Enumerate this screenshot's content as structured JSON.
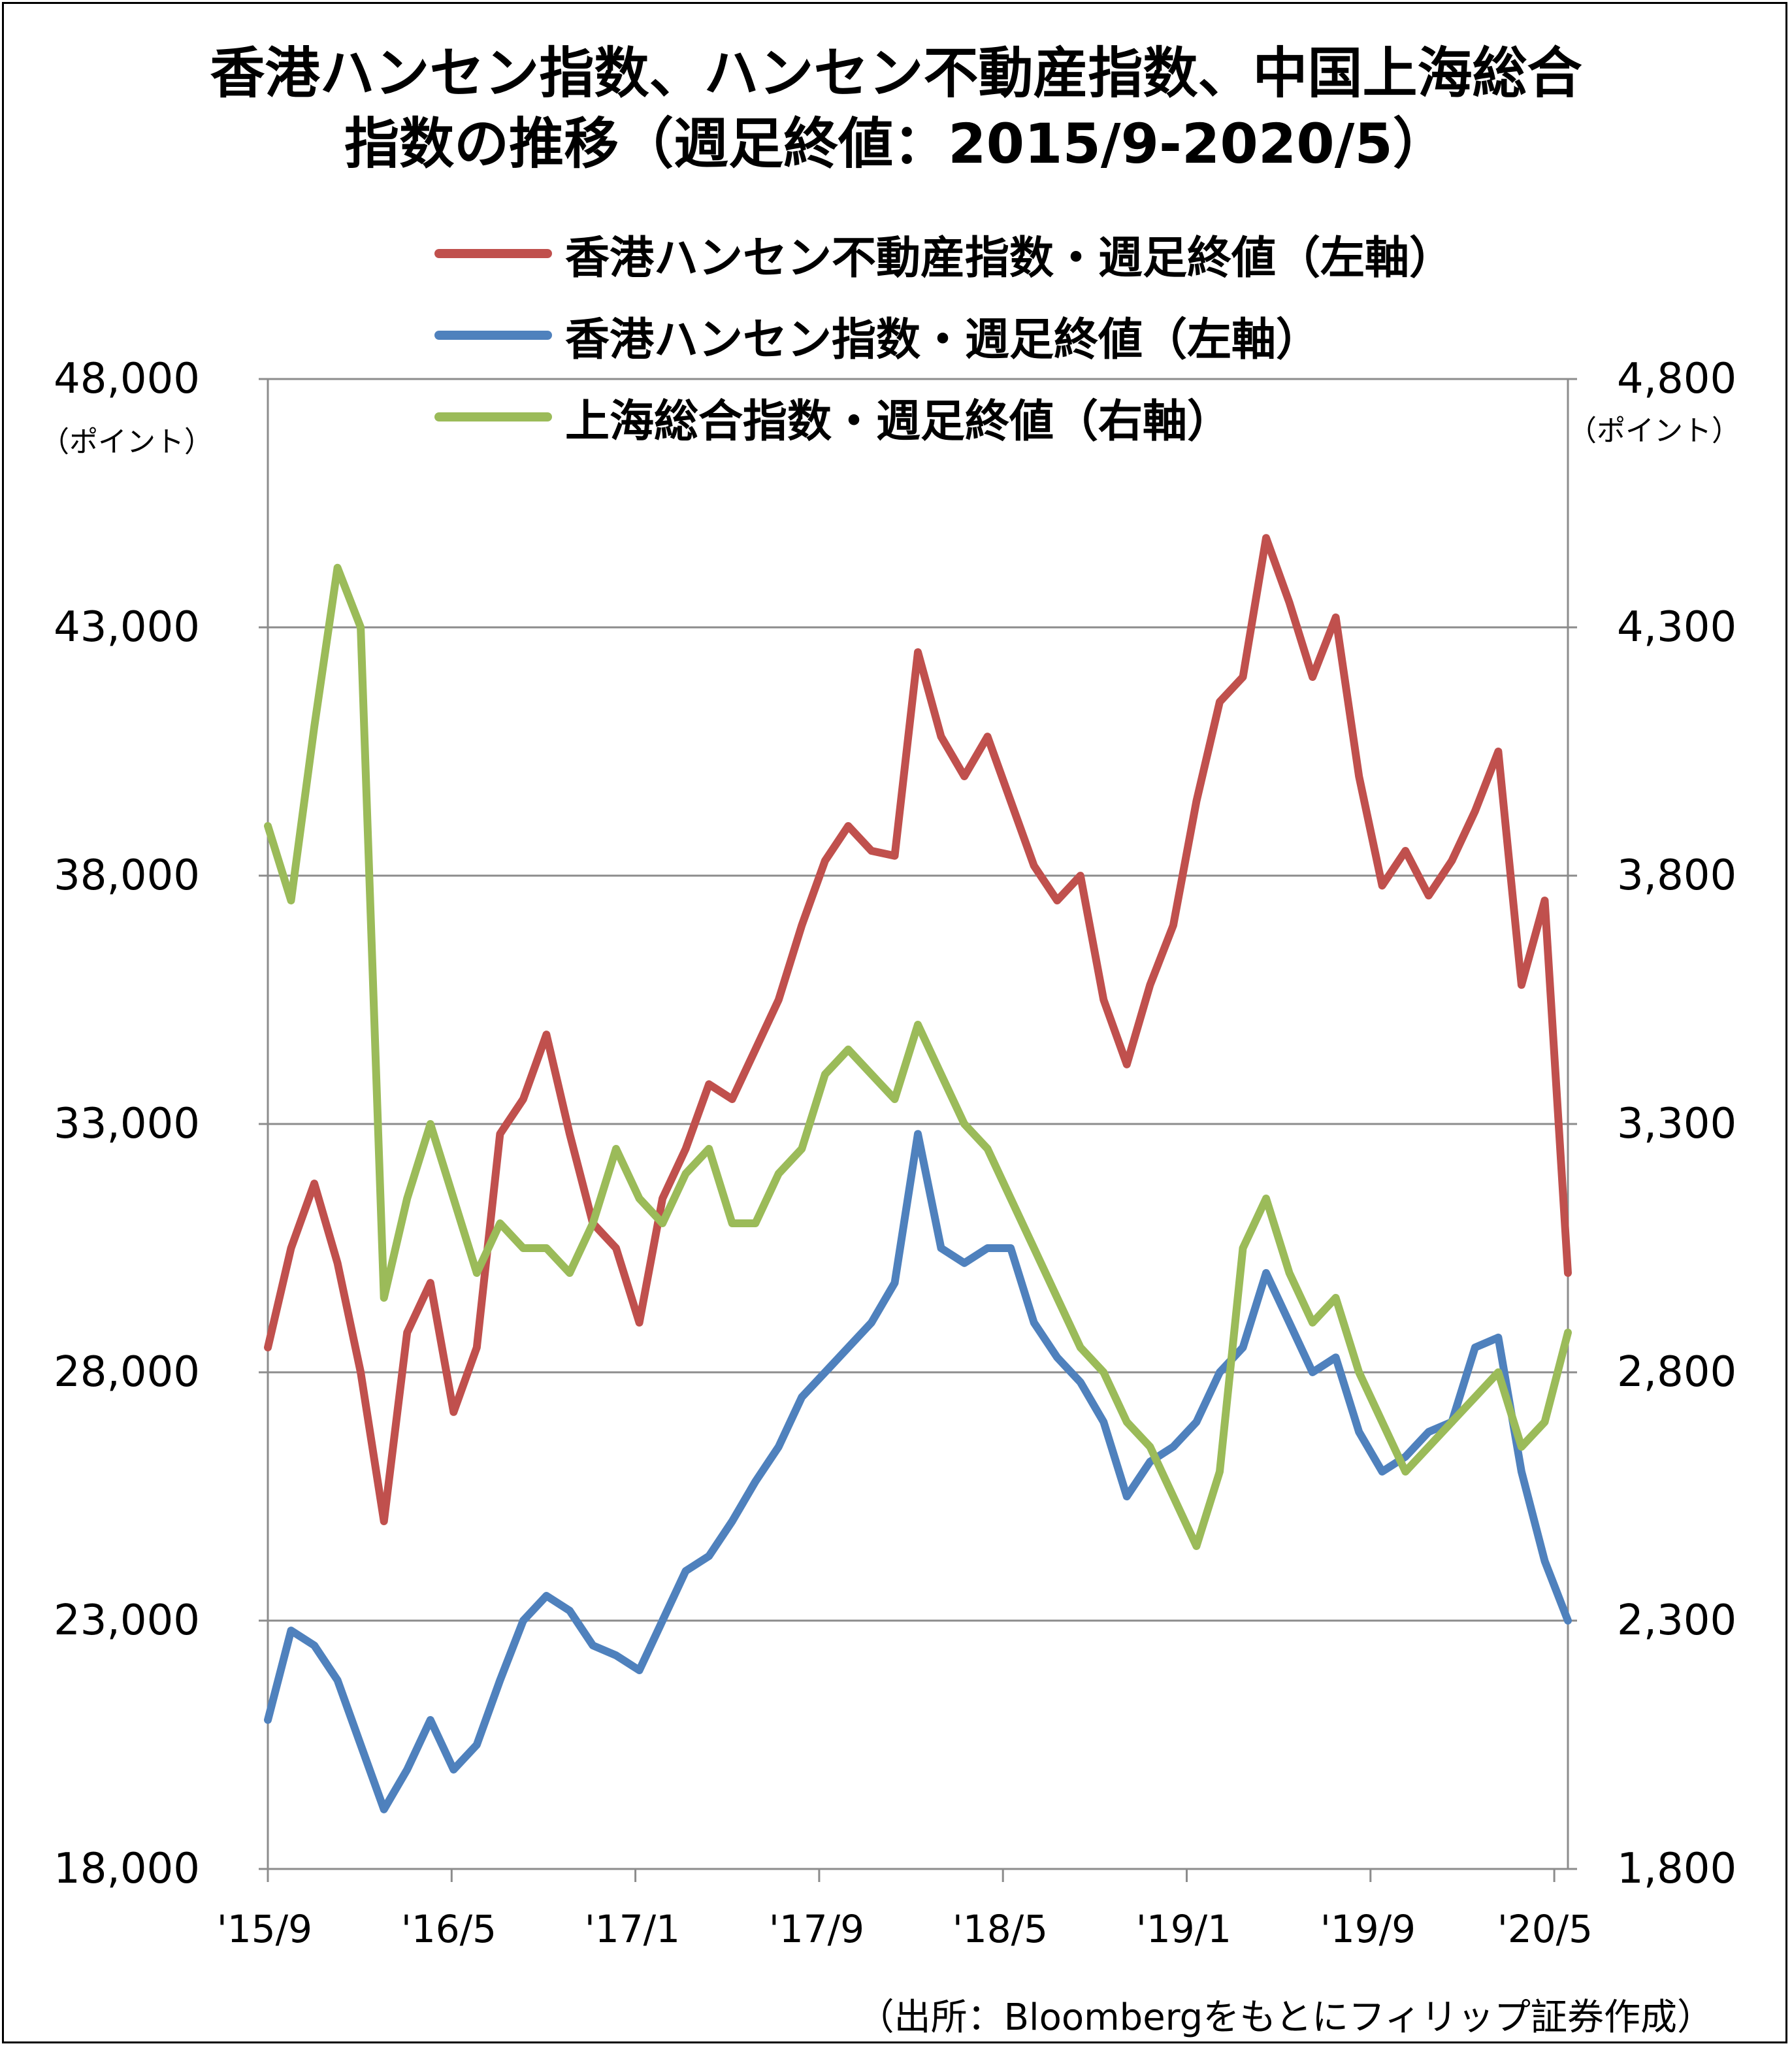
{
  "title": {
    "line1": "香港ハンセン指数、ハンセン不動産指数、中国上海総合",
    "line2": "指数の推移（週足終値：2015/9-2020/5）"
  },
  "legend": [
    {
      "label": "香港ハンセン不動産指数・週足終値（左軸）",
      "color": "#c0504d"
    },
    {
      "label": "香港ハンセン指数・週足終値（左軸）",
      "color": "#4f81bd"
    },
    {
      "label": "上海総合指数・週足終値（右軸）",
      "color": "#9bbb59"
    }
  ],
  "axes": {
    "left_unit": "（ポイント）",
    "right_unit": "（ポイント）",
    "left_ticks": [
      "48,000",
      "43,000",
      "38,000",
      "33,000",
      "28,000",
      "23,000",
      "18,000"
    ],
    "right_ticks": [
      "4,800",
      "4,300",
      "3,800",
      "3,300",
      "2,800",
      "2,300",
      "1,800"
    ],
    "x_ticks": [
      "'15/9",
      "'16/5",
      "'17/1",
      "'17/9",
      "'18/5",
      "'19/1",
      "'19/9",
      "'20/5"
    ]
  },
  "source": "（出所：Bloombergをもとにフィリップ証券作成）",
  "chart_data": {
    "type": "line",
    "title": "香港ハンセン指数、ハンセン不動産指数、中国上海総合指数の推移（週足終値：2015/9-2020/5）",
    "xlabel": "",
    "ylabel_left": "（ポイント）",
    "ylabel_right": "（ポイント）",
    "ylim_left": [
      18000,
      48000
    ],
    "ylim_right": [
      1800,
      4800
    ],
    "grid": true,
    "legend_position": "top-right",
    "x_categories": [
      "'15/9",
      "'16/5",
      "'17/1",
      "'17/9",
      "'18/5",
      "'19/1",
      "'19/9",
      "'20/5"
    ],
    "x": [
      "2015/9",
      "2015/10",
      "2015/11",
      "2015/12",
      "2016/1",
      "2016/2",
      "2016/3",
      "2016/4",
      "2016/5",
      "2016/6",
      "2016/7",
      "2016/8",
      "2016/9",
      "2016/10",
      "2016/11",
      "2016/12",
      "2017/1",
      "2017/2",
      "2017/3",
      "2017/4",
      "2017/5",
      "2017/6",
      "2017/7",
      "2017/8",
      "2017/9",
      "2017/10",
      "2017/11",
      "2017/12",
      "2018/1",
      "2018/2",
      "2018/3",
      "2018/4",
      "2018/5",
      "2018/6",
      "2018/7",
      "2018/8",
      "2018/9",
      "2018/10",
      "2018/11",
      "2018/12",
      "2019/1",
      "2019/2",
      "2019/3",
      "2019/4",
      "2019/5",
      "2019/6",
      "2019/7",
      "2019/8",
      "2019/9",
      "2019/10",
      "2019/11",
      "2019/12",
      "2020/1",
      "2020/2",
      "2020/3",
      "2020/4",
      "2020/5"
    ],
    "series": [
      {
        "name": "香港ハンセン不動産指数・週足終値（左軸）",
        "axis": "left",
        "color": "#c0504d",
        "values": [
          28500,
          30500,
          31800,
          30200,
          28000,
          25000,
          28800,
          29800,
          27200,
          28500,
          32800,
          33500,
          34800,
          32800,
          31000,
          30500,
          29000,
          31500,
          32500,
          33800,
          33500,
          34500,
          35500,
          37000,
          38300,
          39000,
          38500,
          38400,
          42500,
          40800,
          40000,
          40800,
          39500,
          38200,
          37500,
          38000,
          35500,
          34200,
          35800,
          37000,
          39500,
          41500,
          42000,
          44800,
          43500,
          42000,
          43200,
          40000,
          37800,
          38500,
          37600,
          38300,
          39300,
          40500,
          35800,
          37500,
          30000
        ]
      },
      {
        "name": "香港ハンセン指数・週足終値（左軸）",
        "axis": "left",
        "color": "#4f81bd",
        "values": [
          21000,
          22800,
          22500,
          21800,
          20500,
          19200,
          20000,
          21000,
          20000,
          20500,
          21800,
          23000,
          23500,
          23200,
          22500,
          22300,
          22000,
          23000,
          24000,
          24300,
          25000,
          25800,
          26500,
          27500,
          28000,
          28500,
          29000,
          29800,
          32800,
          30500,
          30200,
          30500,
          30500,
          29000,
          28300,
          27800,
          27000,
          25500,
          26200,
          26500,
          27000,
          28000,
          28500,
          30000,
          29000,
          28000,
          28300,
          26800,
          26000,
          26300,
          26800,
          27000,
          28500,
          28700,
          26000,
          24200,
          23000
        ]
      },
      {
        "name": "上海総合指数・週足終値（右軸）",
        "axis": "right",
        "color": "#9bbb59",
        "values": [
          3900,
          3750,
          4100,
          4420,
          4300,
          2950,
          3150,
          3300,
          3150,
          3000,
          3100,
          3050,
          3050,
          3000,
          3100,
          3250,
          3150,
          3100,
          3200,
          3250,
          3100,
          3100,
          3200,
          3250,
          3400,
          3450,
          3400,
          3350,
          3500,
          3400,
          3300,
          3250,
          3150,
          3050,
          2950,
          2850,
          2800,
          2700,
          2650,
          2550,
          2450,
          2600,
          3050,
          3150,
          3000,
          2900,
          2950,
          2800,
          2700,
          2600,
          2650,
          2700,
          2750,
          2800,
          2650,
          2700,
          2880
        ]
      }
    ]
  }
}
